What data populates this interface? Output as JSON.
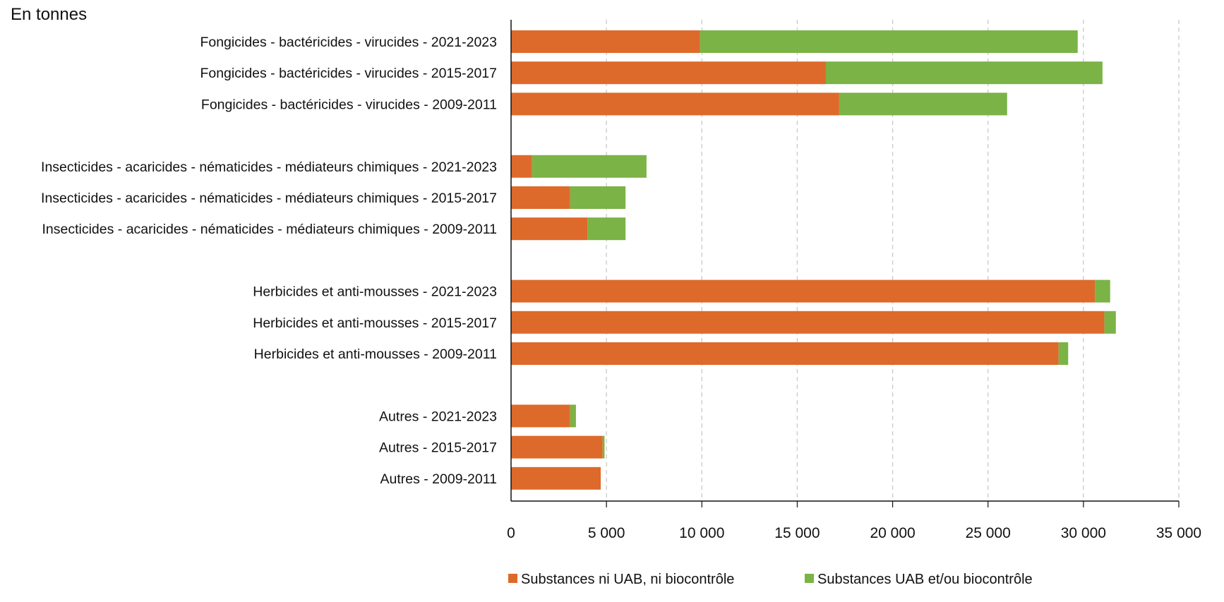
{
  "chart_data": {
    "type": "bar",
    "orientation": "horizontal",
    "stacked": true,
    "title": "",
    "unit_label": "En tonnes",
    "xlabel": "",
    "ylabel": "",
    "xlim": [
      0,
      35000
    ],
    "x_ticks": [
      0,
      5000,
      10000,
      15000,
      20000,
      25000,
      30000,
      35000
    ],
    "x_tick_labels": [
      "0",
      "5 000",
      "10 000",
      "15 000",
      "20 000",
      "25 000",
      "30 000",
      "35 000"
    ],
    "grid": "vertical dashed",
    "legend_position": "bottom",
    "groups": [
      {
        "categories": [
          "Fongicides - bactéricides - virucides - 2021-2023",
          "Fongicides - bactéricides - virucides - 2015-2017",
          "Fongicides - bactéricides - virucides - 2009-2011"
        ]
      },
      {
        "categories": [
          "Insecticides - acaricides - nématicides - médiateurs chimiques - 2021-2023",
          "Insecticides - acaricides - nématicides - médiateurs chimiques - 2015-2017",
          "Insecticides - acaricides - nématicides - médiateurs chimiques - 2009-2011"
        ]
      },
      {
        "categories": [
          "Herbicides et anti-mousses - 2021-2023",
          "Herbicides et anti-mousses - 2015-2017",
          "Herbicides et anti-mousses - 2009-2011"
        ]
      },
      {
        "categories": [
          "Autres - 2021-2023",
          "Autres - 2015-2017",
          "Autres - 2009-2011"
        ]
      }
    ],
    "categories": [
      "Fongicides - bactéricides - virucides - 2021-2023",
      "Fongicides - bactéricides - virucides - 2015-2017",
      "Fongicides - bactéricides - virucides - 2009-2011",
      "Insecticides - acaricides - nématicides - médiateurs chimiques - 2021-2023",
      "Insecticides - acaricides - nématicides - médiateurs chimiques - 2015-2017",
      "Insecticides - acaricides - nématicides - médiateurs chimiques - 2009-2011",
      "Herbicides et anti-mousses - 2021-2023",
      "Herbicides et anti-mousses - 2015-2017",
      "Herbicides et anti-mousses - 2009-2011",
      "Autres - 2021-2023",
      "Autres - 2015-2017",
      "Autres - 2009-2011"
    ],
    "series": [
      {
        "name": "Substances ni UAB, ni biocontrôle",
        "color": "#dd6a2b",
        "values": [
          9900,
          16500,
          17200,
          1100,
          3100,
          4000,
          30600,
          31100,
          28700,
          3100,
          4800,
          4700
        ]
      },
      {
        "name": "Substances UAB et/ou biocontrôle",
        "color": "#7bb346",
        "values": [
          19800,
          14500,
          8800,
          6000,
          2900,
          2000,
          800,
          600,
          500,
          300,
          100,
          0
        ]
      }
    ]
  }
}
